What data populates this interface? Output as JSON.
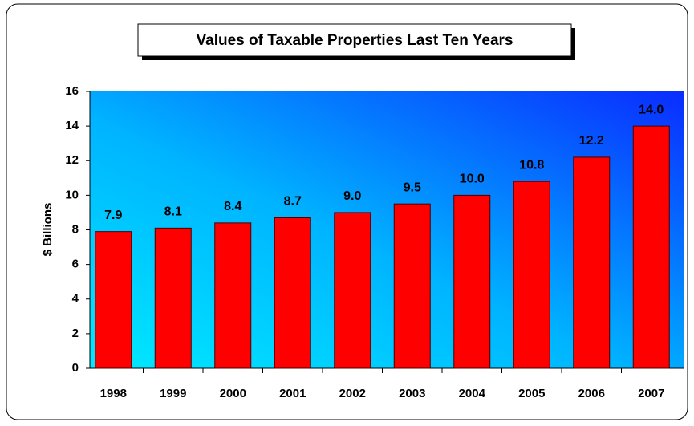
{
  "chart_data": {
    "type": "bar",
    "title": "Values of Taxable Properties Last Ten Years",
    "ylabel": "$ Billions",
    "categories": [
      "1998",
      "1999",
      "2000",
      "2001",
      "2002",
      "2003",
      "2004",
      "2005",
      "2006",
      "2007"
    ],
    "values": [
      7.9,
      8.1,
      8.4,
      8.7,
      9.0,
      9.5,
      10.0,
      10.8,
      12.2,
      14.0
    ],
    "value_labels": [
      "7.9",
      "8.1",
      "8.4",
      "8.7",
      "9.0",
      "9.5",
      "10.0",
      "10.8",
      "12.2",
      "14.0"
    ],
    "color": "#ff0000",
    "ylim": [
      0,
      16
    ],
    "yticks": [
      0,
      2,
      4,
      6,
      8,
      10,
      12,
      14,
      16
    ],
    "grid": false
  }
}
